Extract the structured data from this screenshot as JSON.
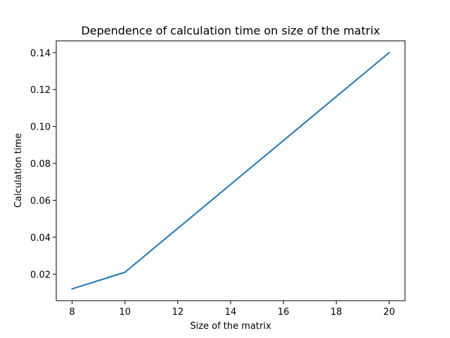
{
  "chart_data": {
    "type": "line",
    "title": "Dependence of calculation time on size of the matrix",
    "xlabel": "Size of the matrix",
    "ylabel": "Calculation time",
    "xlim": [
      7.4,
      20.6
    ],
    "ylim": [
      0.0056,
      0.1464
    ],
    "x_ticks": [
      8,
      10,
      12,
      14,
      16,
      18,
      20
    ],
    "y_ticks": [
      0.02,
      0.04,
      0.06,
      0.08,
      0.1,
      0.12,
      0.14
    ],
    "x_tick_labels": [
      "8",
      "10",
      "12",
      "14",
      "16",
      "18",
      "20"
    ],
    "y_tick_labels": [
      "0.02",
      "0.04",
      "0.06",
      "0.08",
      "0.10",
      "0.12",
      "0.14"
    ],
    "grid": false,
    "series": [
      {
        "color": "#1f77b4",
        "x": [
          8,
          10,
          20
        ],
        "y": [
          0.012,
          0.021,
          0.14
        ]
      }
    ]
  }
}
